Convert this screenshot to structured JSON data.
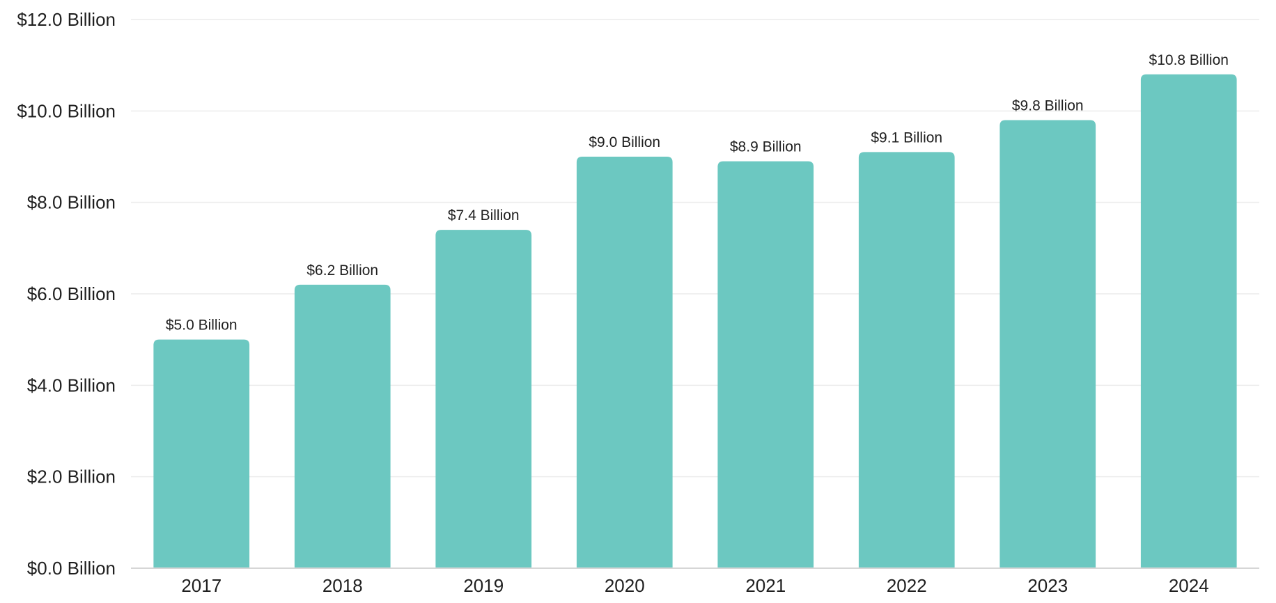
{
  "chart_data": {
    "type": "bar",
    "categories": [
      "2017",
      "2018",
      "2019",
      "2020",
      "2021",
      "2022",
      "2023",
      "2024"
    ],
    "values": [
      5.0,
      6.2,
      7.4,
      9.0,
      8.9,
      9.1,
      9.8,
      10.8
    ],
    "data_labels": [
      "$5.0 Billion",
      "$6.2 Billion",
      "$7.4 Billion",
      "$9.0 Billion",
      "$8.9 Billion",
      "$9.1 Billion",
      "$9.8 Billion",
      "$10.8 Billion"
    ],
    "title": "",
    "xlabel": "",
    "ylabel": "",
    "ylim": [
      0,
      12
    ],
    "y_ticks": [
      0,
      2,
      4,
      6,
      8,
      10,
      12
    ],
    "y_tick_labels": [
      "$0.0 Billion",
      "$2.0 Billion",
      "$4.0 Billion",
      "$6.0 Billion",
      "$8.0 Billion",
      "$10.0 Billion",
      "$12.0 Billion"
    ],
    "grid": true,
    "legend": "none",
    "bar_color": "#6cc8c1"
  }
}
